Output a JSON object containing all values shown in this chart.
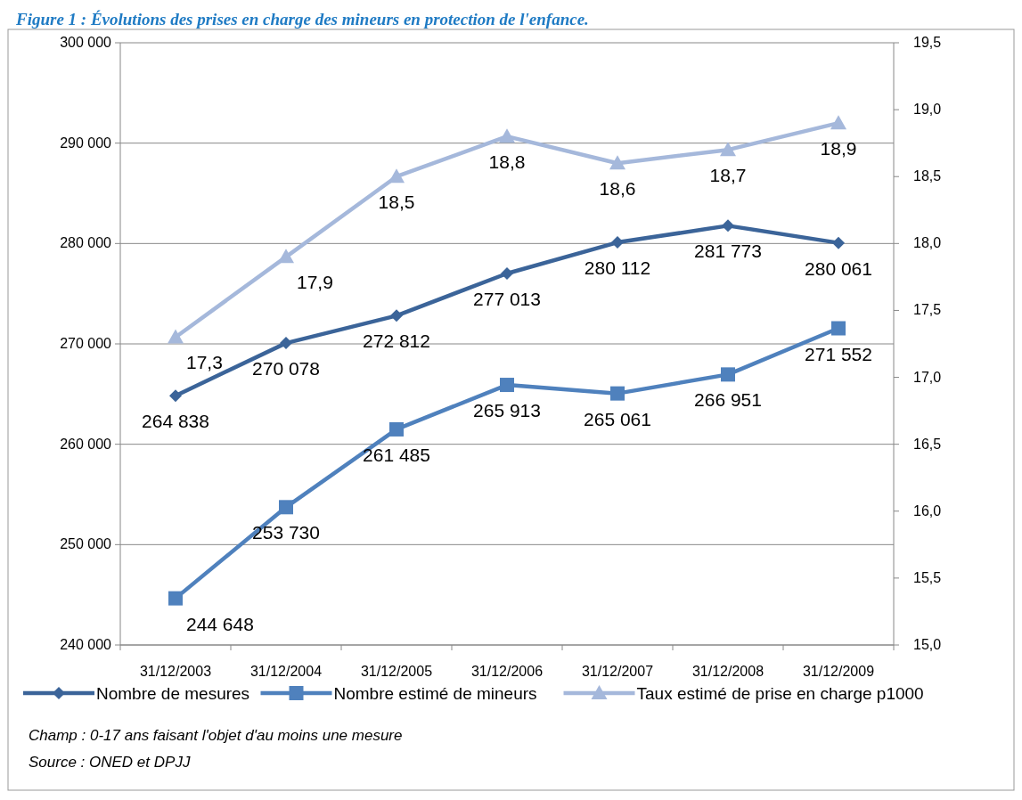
{
  "chart_data": {
    "type": "line",
    "title": "Figure 1 : Évolutions des prises en charge des mineurs en protection de l'enfance.",
    "categories": [
      "31/12/2003",
      "31/12/2004",
      "31/12/2005",
      "31/12/2006",
      "31/12/2007",
      "31/12/2008",
      "31/12/2009"
    ],
    "series": [
      {
        "name": "Nombre de mesures",
        "color": "#3b6499",
        "marker": "diamond",
        "values": [
          264838,
          270078,
          272812,
          277013,
          280112,
          281773,
          280061
        ]
      },
      {
        "name": "Nombre estimé de mineurs",
        "color": "#4f81bd",
        "marker": "square",
        "values": [
          244648,
          253730,
          261485,
          265913,
          265061,
          266951,
          271552
        ]
      },
      {
        "name": "Taux estimé de prise en charge p1000",
        "color": "#a5b8db",
        "marker": "triangle",
        "axis": "y2",
        "values": [
          17.3,
          17.9,
          18.5,
          18.8,
          18.6,
          18.7,
          18.9
        ],
        "value_labels": [
          "17,3",
          "17,9",
          "18,5",
          "18,8",
          "18,6",
          "18,7",
          "18,9"
        ]
      }
    ],
    "ylim": [
      240000,
      300000
    ],
    "yticks": [
      {
        "value": 240000,
        "label": "240 000"
      },
      {
        "value": 250000,
        "label": "250 000"
      },
      {
        "value": 260000,
        "label": "260 000"
      },
      {
        "value": 270000,
        "label": "270 000"
      },
      {
        "value": 280000,
        "label": "280 000"
      },
      {
        "value": 290000,
        "label": "290 000"
      },
      {
        "value": 300000,
        "label": "300 000"
      }
    ],
    "y2lim": [
      15,
      19.5
    ],
    "y2ticks": [
      {
        "value": 15,
        "label": "15,0"
      },
      {
        "value": 15.5,
        "label": "15,5"
      },
      {
        "value": 16,
        "label": "16,0"
      },
      {
        "value": 16.5,
        "label": "16,5"
      },
      {
        "value": 17,
        "label": "17,0"
      },
      {
        "value": 17.5,
        "label": "17,5"
      },
      {
        "value": 18,
        "label": "18,0"
      },
      {
        "value": 18.5,
        "label": "18,5"
      },
      {
        "value": 19,
        "label": "19,0"
      },
      {
        "value": 19.5,
        "label": "19,5"
      }
    ],
    "grid": "y",
    "legend": "bottom",
    "data_labels": true,
    "annotations": [
      "Champ : 0-17 ans faisant l'objet d'au moins une mesure",
      "Source : ONED et DPJJ"
    ]
  }
}
